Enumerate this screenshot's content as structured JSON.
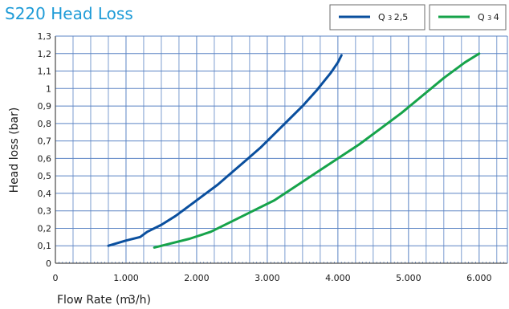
{
  "chart_data": {
    "type": "line",
    "title": "S220 Head Loss",
    "xlabel": "Flow Rate (m",
    "xlabel_unit": "3/h)",
    "ylabel": "Head loss (bar)",
    "xlim": [
      0,
      6400
    ],
    "ylim": [
      0,
      1.3
    ],
    "x_ticks": [
      0,
      1000,
      2000,
      3000,
      4000,
      5000,
      6000
    ],
    "x_tick_labels": [
      "0",
      "1.000",
      "2.000",
      "3.000",
      "4.000",
      "5.000",
      "6.000"
    ],
    "y_ticks": [
      0,
      0.1,
      0.2,
      0.3,
      0.4,
      0.5,
      0.6,
      0.7,
      0.8,
      0.9,
      1,
      1.1,
      1.2,
      1.3
    ],
    "y_tick_labels": [
      "0",
      "0,1",
      "0,2",
      "0,3",
      "0,4",
      "0,5",
      "0,6",
      "0,7",
      "0,8",
      "0,9",
      "1",
      "1,1",
      "1,2",
      "1,3"
    ],
    "grid": true,
    "legend_position": "top-right",
    "series": [
      {
        "name": "Q3 2,5",
        "legend_prefix": "Q",
        "legend_sub": "3",
        "legend_value": "2,5",
        "color": "#0a4f9e",
        "x": [
          750,
          1000,
          1200,
          1300,
          1500,
          1700,
          1900,
          2100,
          2300,
          2500,
          2700,
          2900,
          3100,
          3300,
          3500,
          3700,
          3800,
          3900,
          4000,
          4050
        ],
        "y": [
          0.1,
          0.13,
          0.15,
          0.18,
          0.22,
          0.27,
          0.33,
          0.39,
          0.45,
          0.52,
          0.59,
          0.66,
          0.74,
          0.82,
          0.9,
          0.99,
          1.04,
          1.09,
          1.15,
          1.19
        ]
      },
      {
        "name": "Q3 4",
        "legend_prefix": "Q",
        "legend_sub": "3",
        "legend_value": "4",
        "color": "#16a34a",
        "x": [
          1400,
          1600,
          1900,
          2200,
          2500,
          2800,
          3100,
          3400,
          3700,
          4000,
          4300,
          4600,
          4900,
          5200,
          5500,
          5800,
          6000
        ],
        "y": [
          0.09,
          0.11,
          0.14,
          0.18,
          0.24,
          0.3,
          0.36,
          0.44,
          0.52,
          0.6,
          0.68,
          0.77,
          0.86,
          0.96,
          1.06,
          1.15,
          1.2
        ]
      }
    ]
  },
  "colors": {
    "title": "#1e9bd7",
    "grid": "#5b84c4",
    "frame": "#4a4a4a"
  }
}
